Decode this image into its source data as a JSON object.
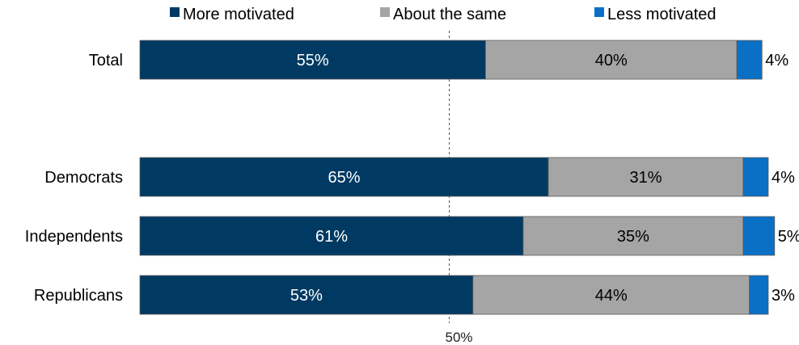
{
  "chart_data": {
    "type": "bar",
    "orientation": "horizontal",
    "stacked": true,
    "categories": [
      "Total",
      "Democrats",
      "Independents",
      "Republicans"
    ],
    "series": [
      {
        "name": "More motivated",
        "values": [
          55,
          65,
          61,
          53
        ],
        "color": "#003a63",
        "label_color": "#ffffff"
      },
      {
        "name": "About the same",
        "values": [
          40,
          31,
          35,
          44
        ],
        "color": "#a5a5a5",
        "label_color": "#000000"
      },
      {
        "name": "Less motivated",
        "values": [
          4,
          4,
          5,
          3
        ],
        "color": "#0a70c5",
        "label_color": "#000000"
      }
    ],
    "data_labels": [
      [
        "55%",
        "40%",
        "4%"
      ],
      [
        "65%",
        "31%",
        "4%"
      ],
      [
        "61%",
        "35%",
        "5%"
      ],
      [
        "53%",
        "44%",
        "3%"
      ]
    ],
    "reference_line": {
      "value": 50,
      "label": "50%",
      "style": "dashed"
    },
    "xlim": [
      0,
      100
    ],
    "legend": "top",
    "grid": false
  }
}
